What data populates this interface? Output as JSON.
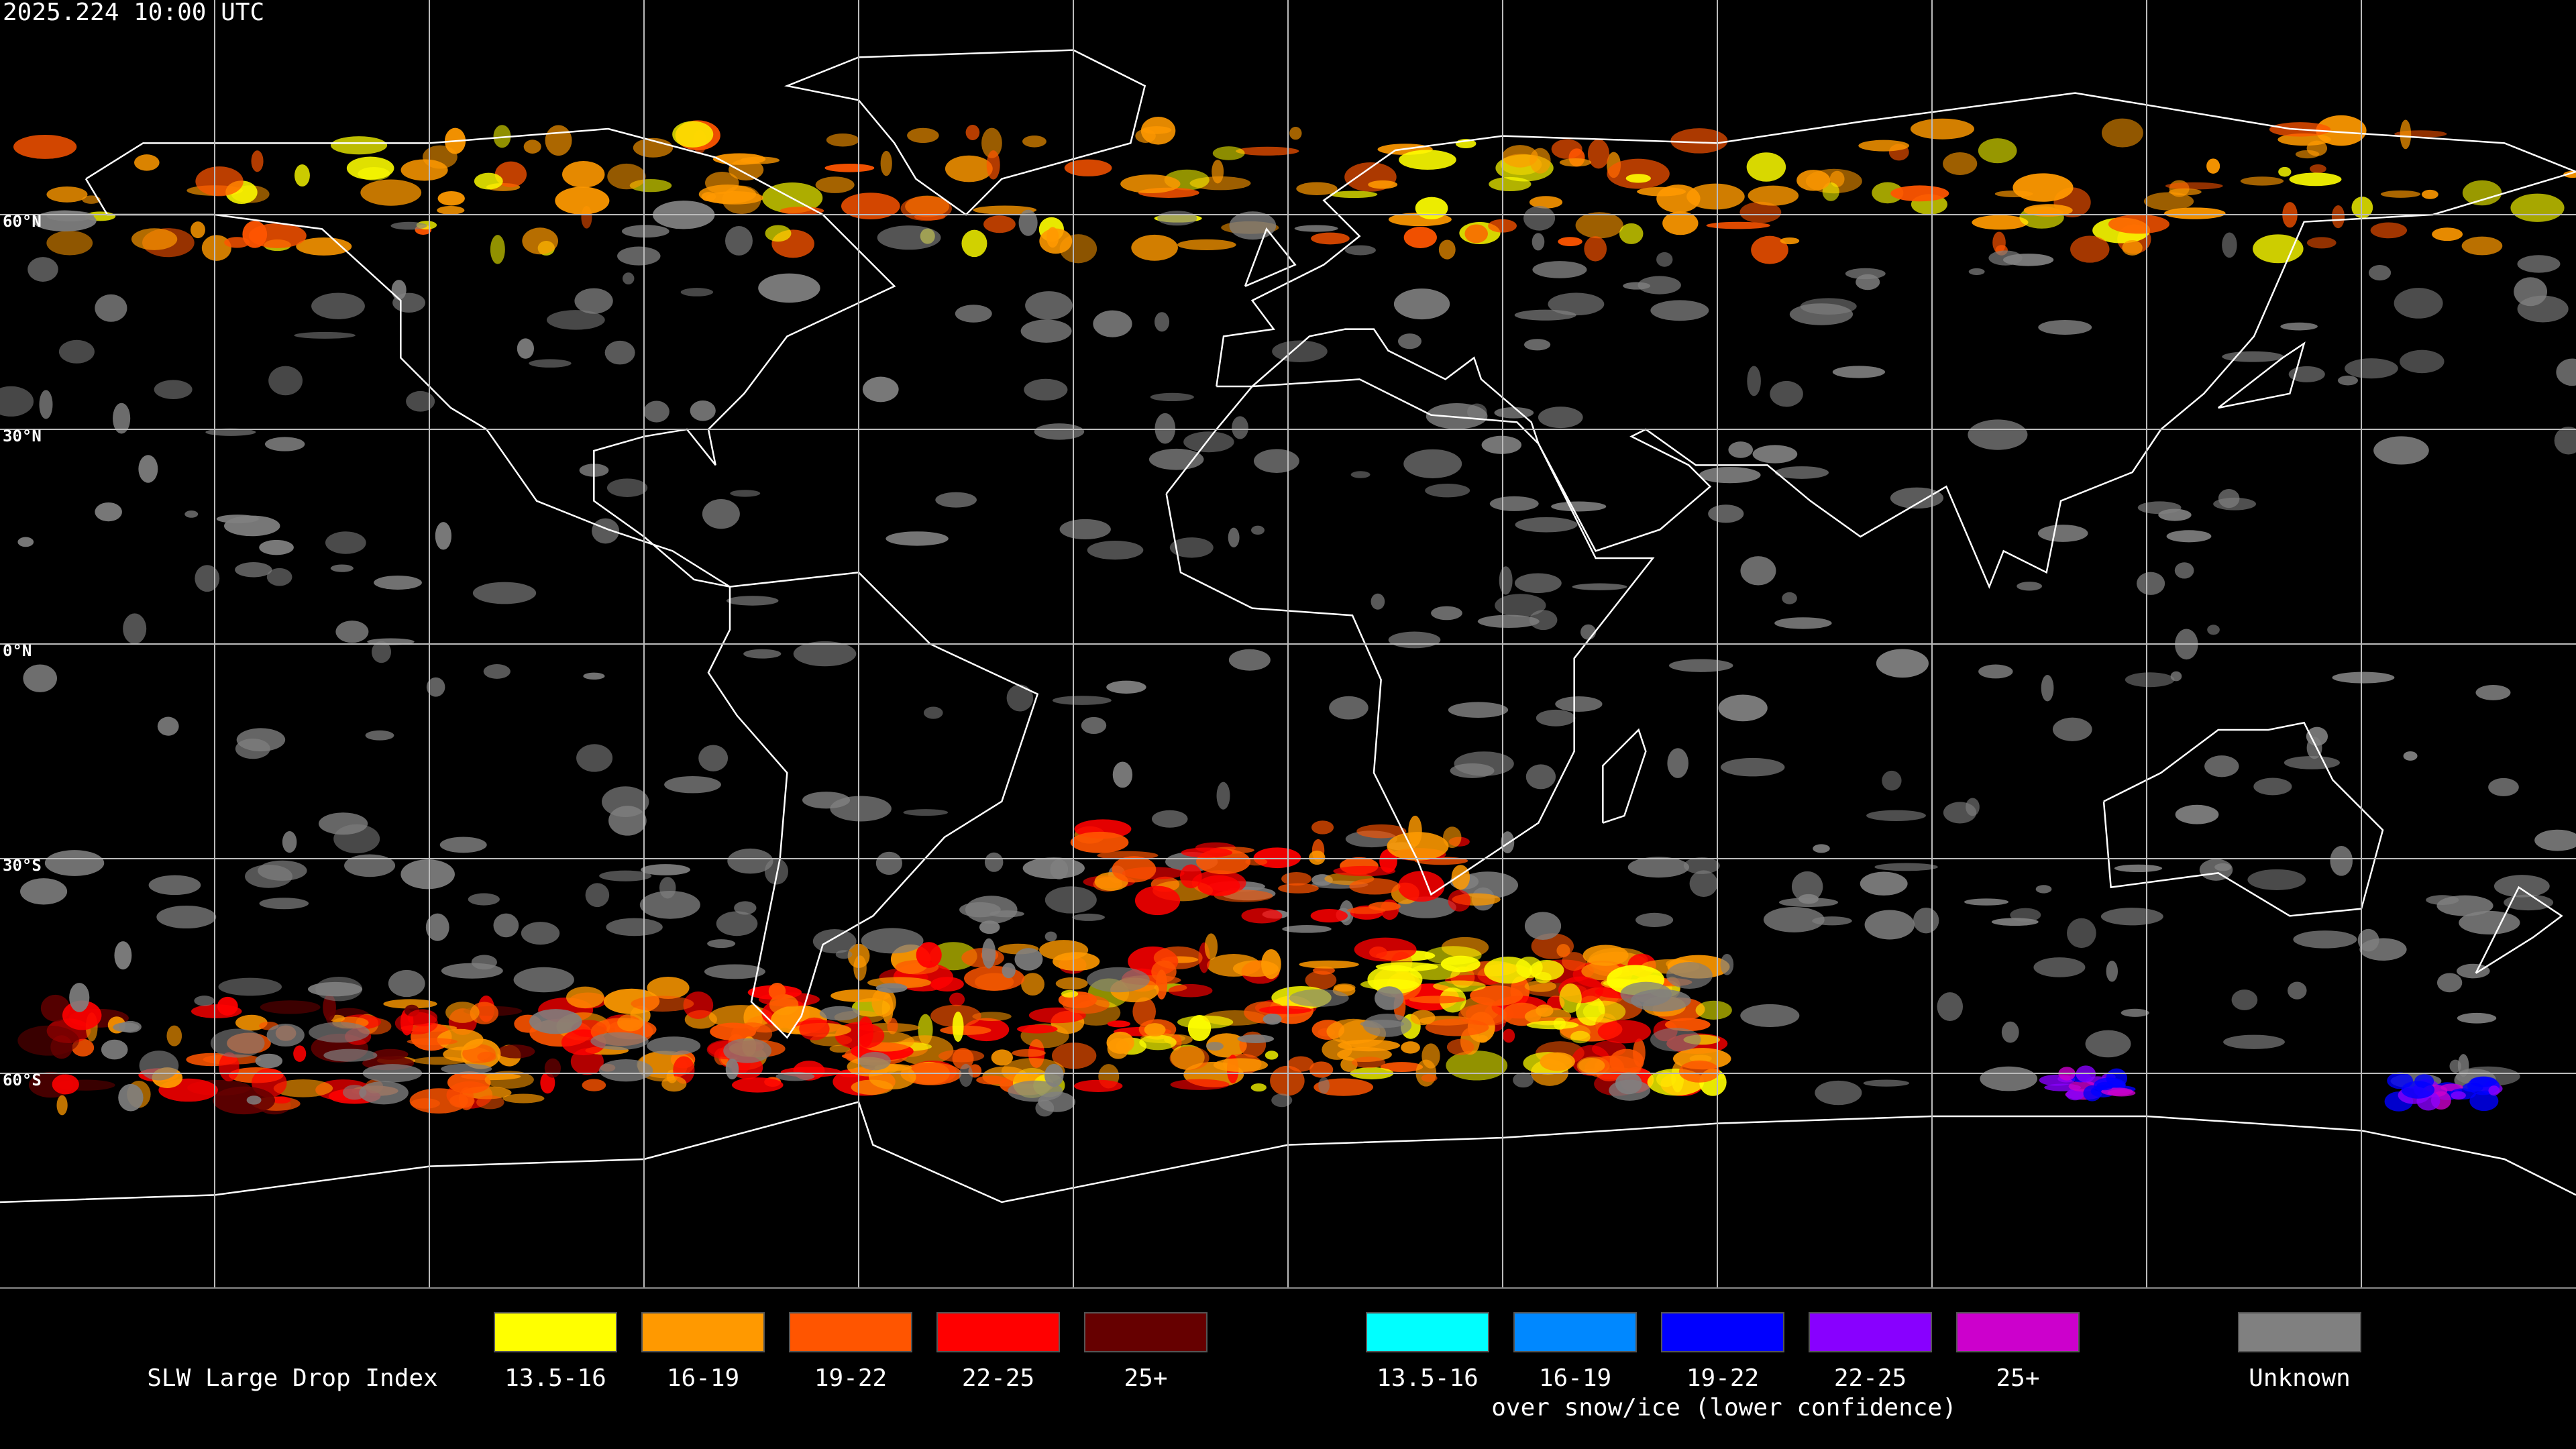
{
  "header": {
    "timestamp": "2025.224 10:00 UTC"
  },
  "map": {
    "latitude_labels": [
      "60°N",
      "30°N",
      "0°N",
      "30°S",
      "60°S"
    ]
  },
  "legend": {
    "title": "SLW Large Drop Index",
    "items": [
      {
        "label": "13.5-16",
        "color": "#ffff00"
      },
      {
        "label": "16-19",
        "color": "#ff9900"
      },
      {
        "label": "19-22",
        "color": "#ff5500"
      },
      {
        "label": "22-25",
        "color": "#ff0000"
      },
      {
        "label": "25+",
        "color": "#660000"
      }
    ],
    "snow_ice_items": [
      {
        "label": "13.5-16",
        "color": "#00ffff"
      },
      {
        "label": "16-19",
        "color": "#0088ff"
      },
      {
        "label": "19-22",
        "color": "#0000ff"
      },
      {
        "label": "22-25",
        "color": "#8800ff"
      },
      {
        "label": "25+",
        "color": "#cc00cc"
      }
    ],
    "snow_ice_note": "over snow/ice (lower confidence)",
    "unknown": {
      "label": "Unknown",
      "color": "#808080"
    }
  }
}
